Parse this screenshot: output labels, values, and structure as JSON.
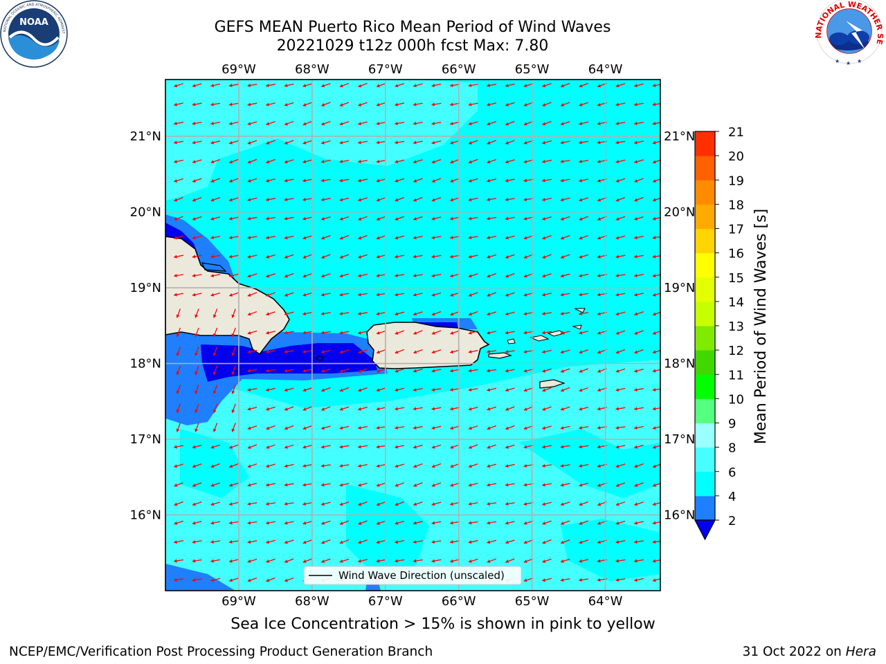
{
  "header": {
    "title_line1": "GEFS MEAN Puerto Rico Mean Period of Wind Waves",
    "title_line2": "20221029 t12z 000h fcst   Max: 7.80"
  },
  "logos": {
    "left": {
      "icon": "noaa-logo-icon",
      "text": "NOAA",
      "ring_text": "NATIONAL OCEANIC AND ATMOSPHERIC ADMINISTRATION · U.S. DEPARTMENT OF COMMERCE"
    },
    "right": {
      "icon": "nws-logo-icon",
      "ring_text": "NATIONAL WEATHER SERVICE"
    }
  },
  "map": {
    "lon_ticks": [
      "69°W",
      "68°W",
      "67°W",
      "66°W",
      "65°W",
      "64°W"
    ],
    "lon_values": [
      -69,
      -68,
      -67,
      -66,
      -65,
      -64
    ],
    "lat_ticks": [
      "21°N",
      "20°N",
      "19°N",
      "18°N",
      "17°N",
      "16°N"
    ],
    "lat_values": [
      21,
      20,
      19,
      18,
      17,
      16
    ],
    "extent": {
      "lon_min": -70.0,
      "lon_max": -63.25,
      "lat_min": 15.0,
      "lat_max": 21.75
    },
    "arrow_direction": "toward west (waves from the east)",
    "legend_label": "Wind Wave Direction (unscaled)",
    "colors": {
      "ocean_base": "#00ffff",
      "ocean_light": "#44ffff",
      "ocean_mid": "#1f80ff",
      "ocean_deep": "#0000ee",
      "land": "#ebe9dc",
      "arrow": "#ff0000",
      "grid": "#b0b0b0"
    }
  },
  "colorbar": {
    "label": "Mean Period of Wind Waves [s]",
    "ticks": [
      "2",
      "4",
      "6",
      "8",
      "9",
      "10",
      "11",
      "12",
      "13",
      "14",
      "15",
      "16",
      "17",
      "18",
      "19",
      "20",
      "21"
    ],
    "levels": [
      2,
      4,
      6,
      8,
      9,
      10,
      11,
      12,
      13,
      14,
      15,
      16,
      17,
      18,
      19,
      20,
      21
    ],
    "colors": [
      "#1e80ff",
      "#00ffff",
      "#48ffff",
      "#9affff",
      "#55ff80",
      "#00ff00",
      "#40d800",
      "#80ea00",
      "#c8ff00",
      "#e4ff00",
      "#ffff00",
      "#ffd400",
      "#ffaa00",
      "#ff8c00",
      "#ff6000",
      "#ff3000"
    ],
    "under_color": "#0000ee",
    "over_color": "#ff0000"
  },
  "footer": {
    "note": "Sea Ice Concentration > 15% is shown in pink to yellow",
    "credit": "NCEP/EMC/Verification Post Processing Product Generation Branch",
    "date": "31 Oct 2022 on ",
    "machine": "Hera"
  }
}
